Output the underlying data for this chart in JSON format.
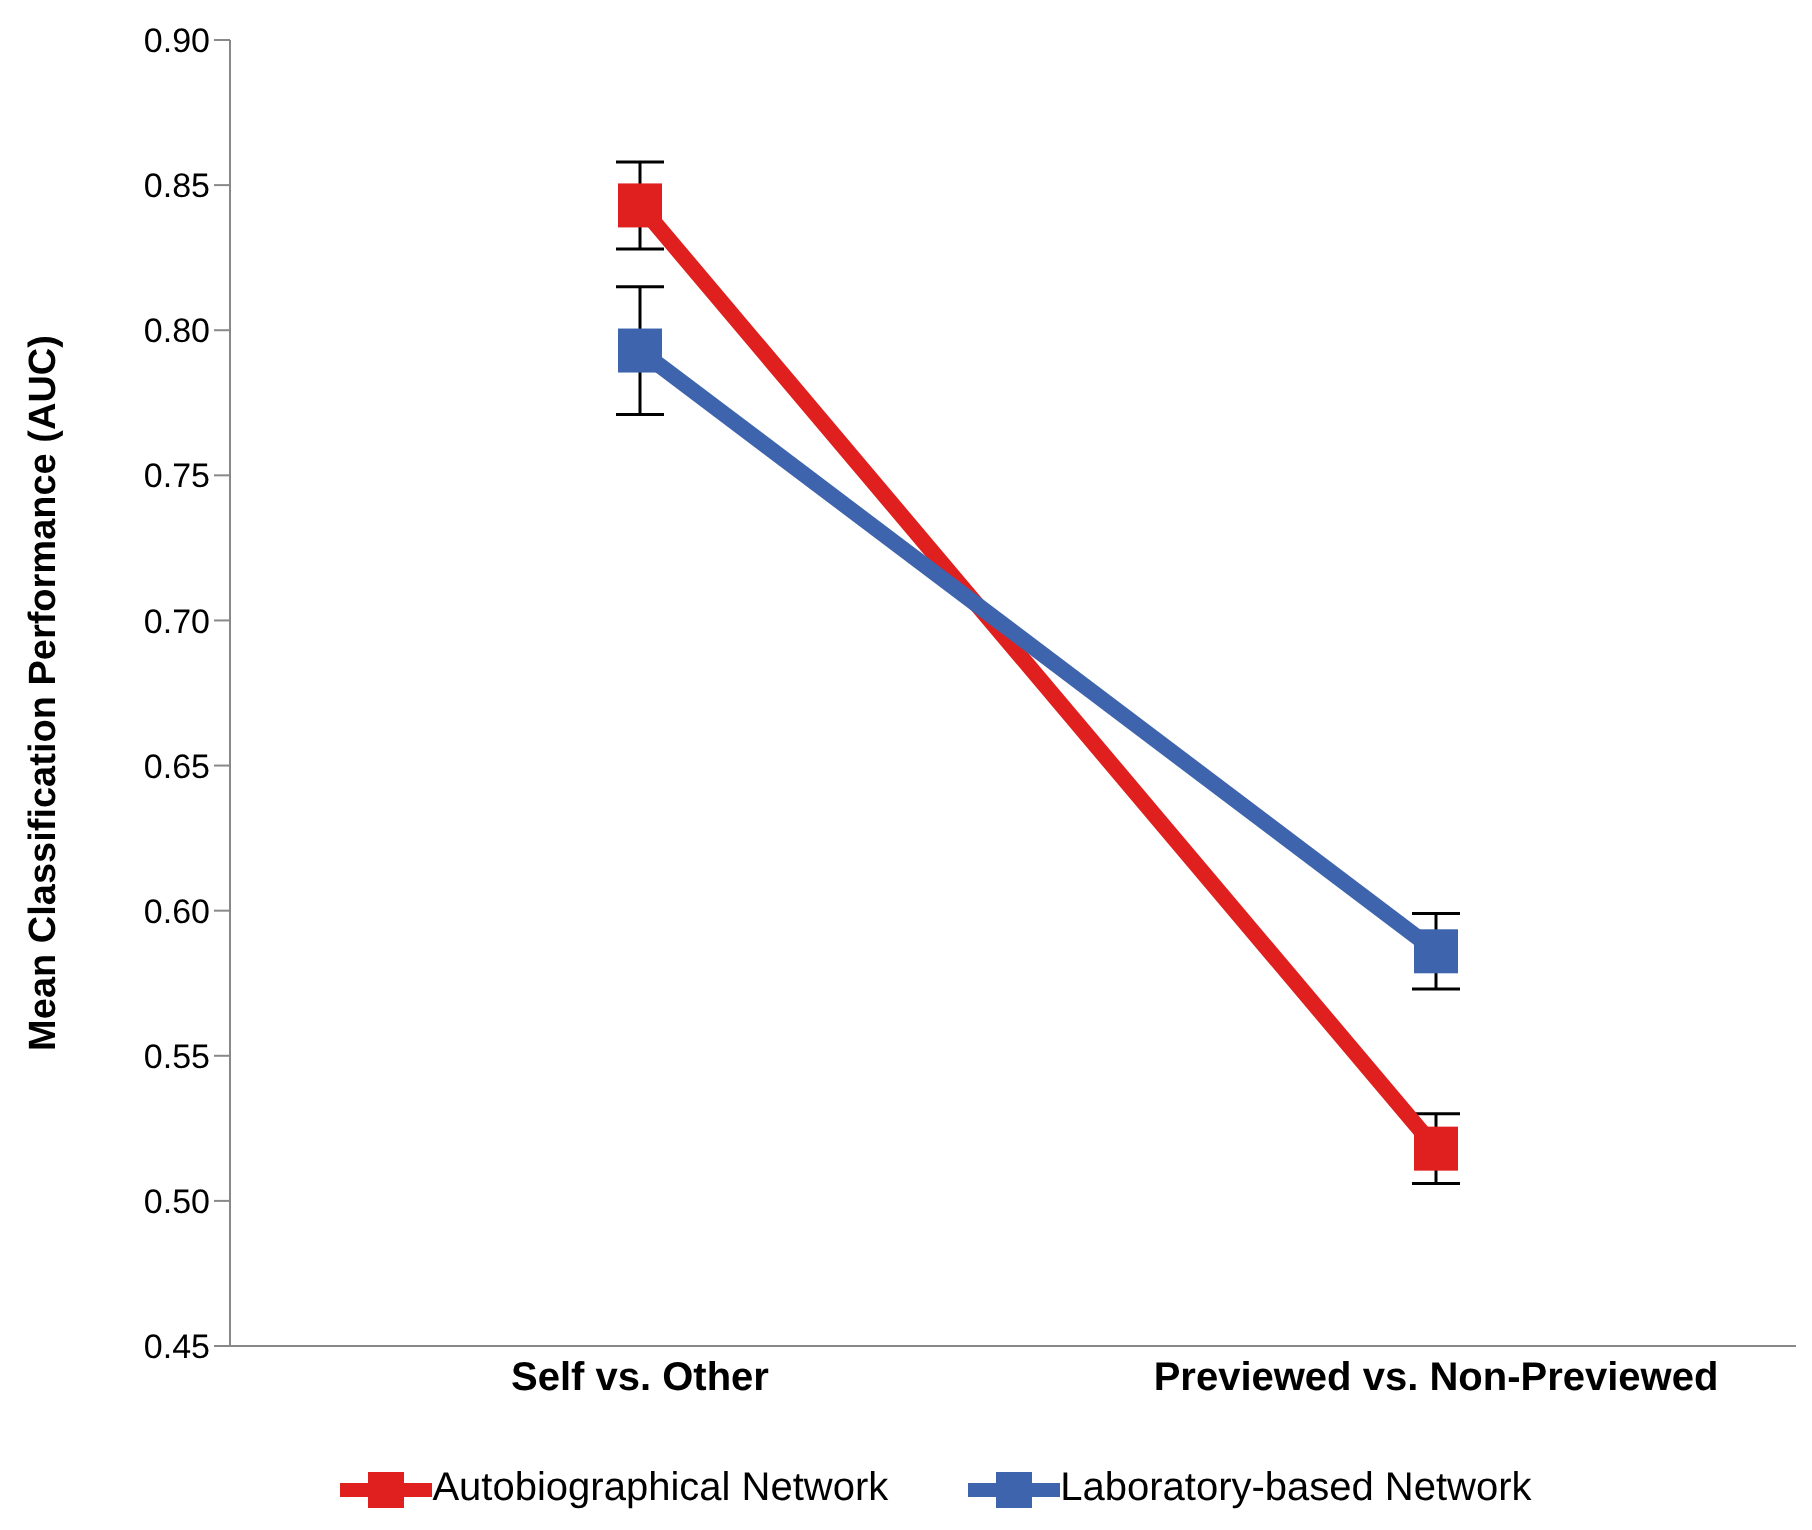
{
  "chart_data": {
    "type": "line",
    "ylabel": "Mean Classification Performance (AUC)",
    "categories": [
      "Self vs. Other",
      "Previewed vs. Non-Previewed"
    ],
    "series": [
      {
        "name": "Autobiographical Network",
        "color": "#e0201f",
        "values": [
          0.843,
          0.518
        ],
        "errors": [
          0.015,
          0.012
        ]
      },
      {
        "name": "Laboratory-based Network",
        "color": "#3d64ac",
        "values": [
          0.793,
          0.586
        ],
        "errors": [
          0.022,
          0.013
        ]
      }
    ],
    "ylim": [
      0.45,
      0.9
    ],
    "yticks": [
      0.45,
      {
        "value": 0.5,
        "label": "0.50"
      },
      0.55,
      {
        "value": 0.6,
        "label": "0.60"
      },
      0.65,
      {
        "value": 0.7,
        "label": "0.70"
      },
      0.75,
      {
        "value": 0.8,
        "label": "0.80"
      },
      0.85,
      {
        "value": 0.9,
        "label": "0.90"
      }
    ],
    "grid": false,
    "legend": "bottom",
    "marker": "square",
    "line_style": "solid"
  }
}
